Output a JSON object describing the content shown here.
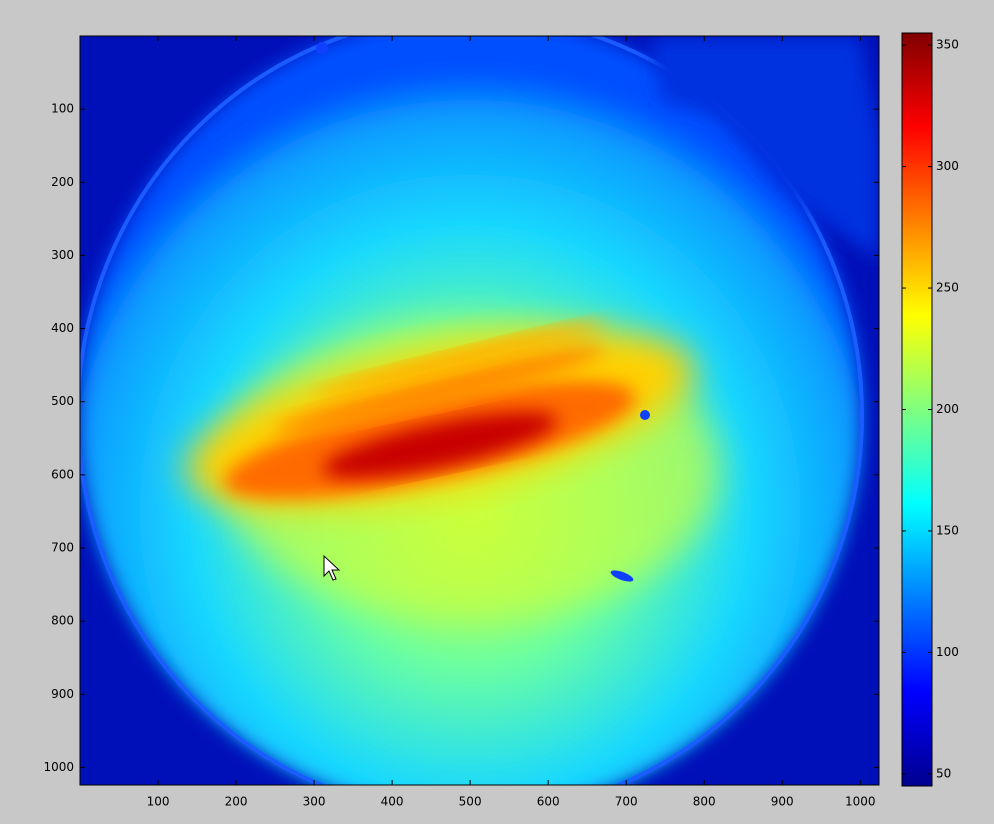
{
  "chart_data": {
    "type": "image",
    "xlim": [
      0,
      1024
    ],
    "ylim": [
      0,
      1024
    ],
    "xticks": [
      100,
      200,
      300,
      400,
      500,
      600,
      700,
      800,
      900,
      1000
    ],
    "yticks": [
      100,
      200,
      300,
      400,
      500,
      600,
      700,
      800,
      900,
      1000
    ],
    "y_reversed": true,
    "colormap": "jet",
    "colorbar": {
      "lim": [
        45,
        355
      ],
      "ticks": [
        50,
        100,
        150,
        200,
        250,
        300,
        350
      ]
    }
  }
}
